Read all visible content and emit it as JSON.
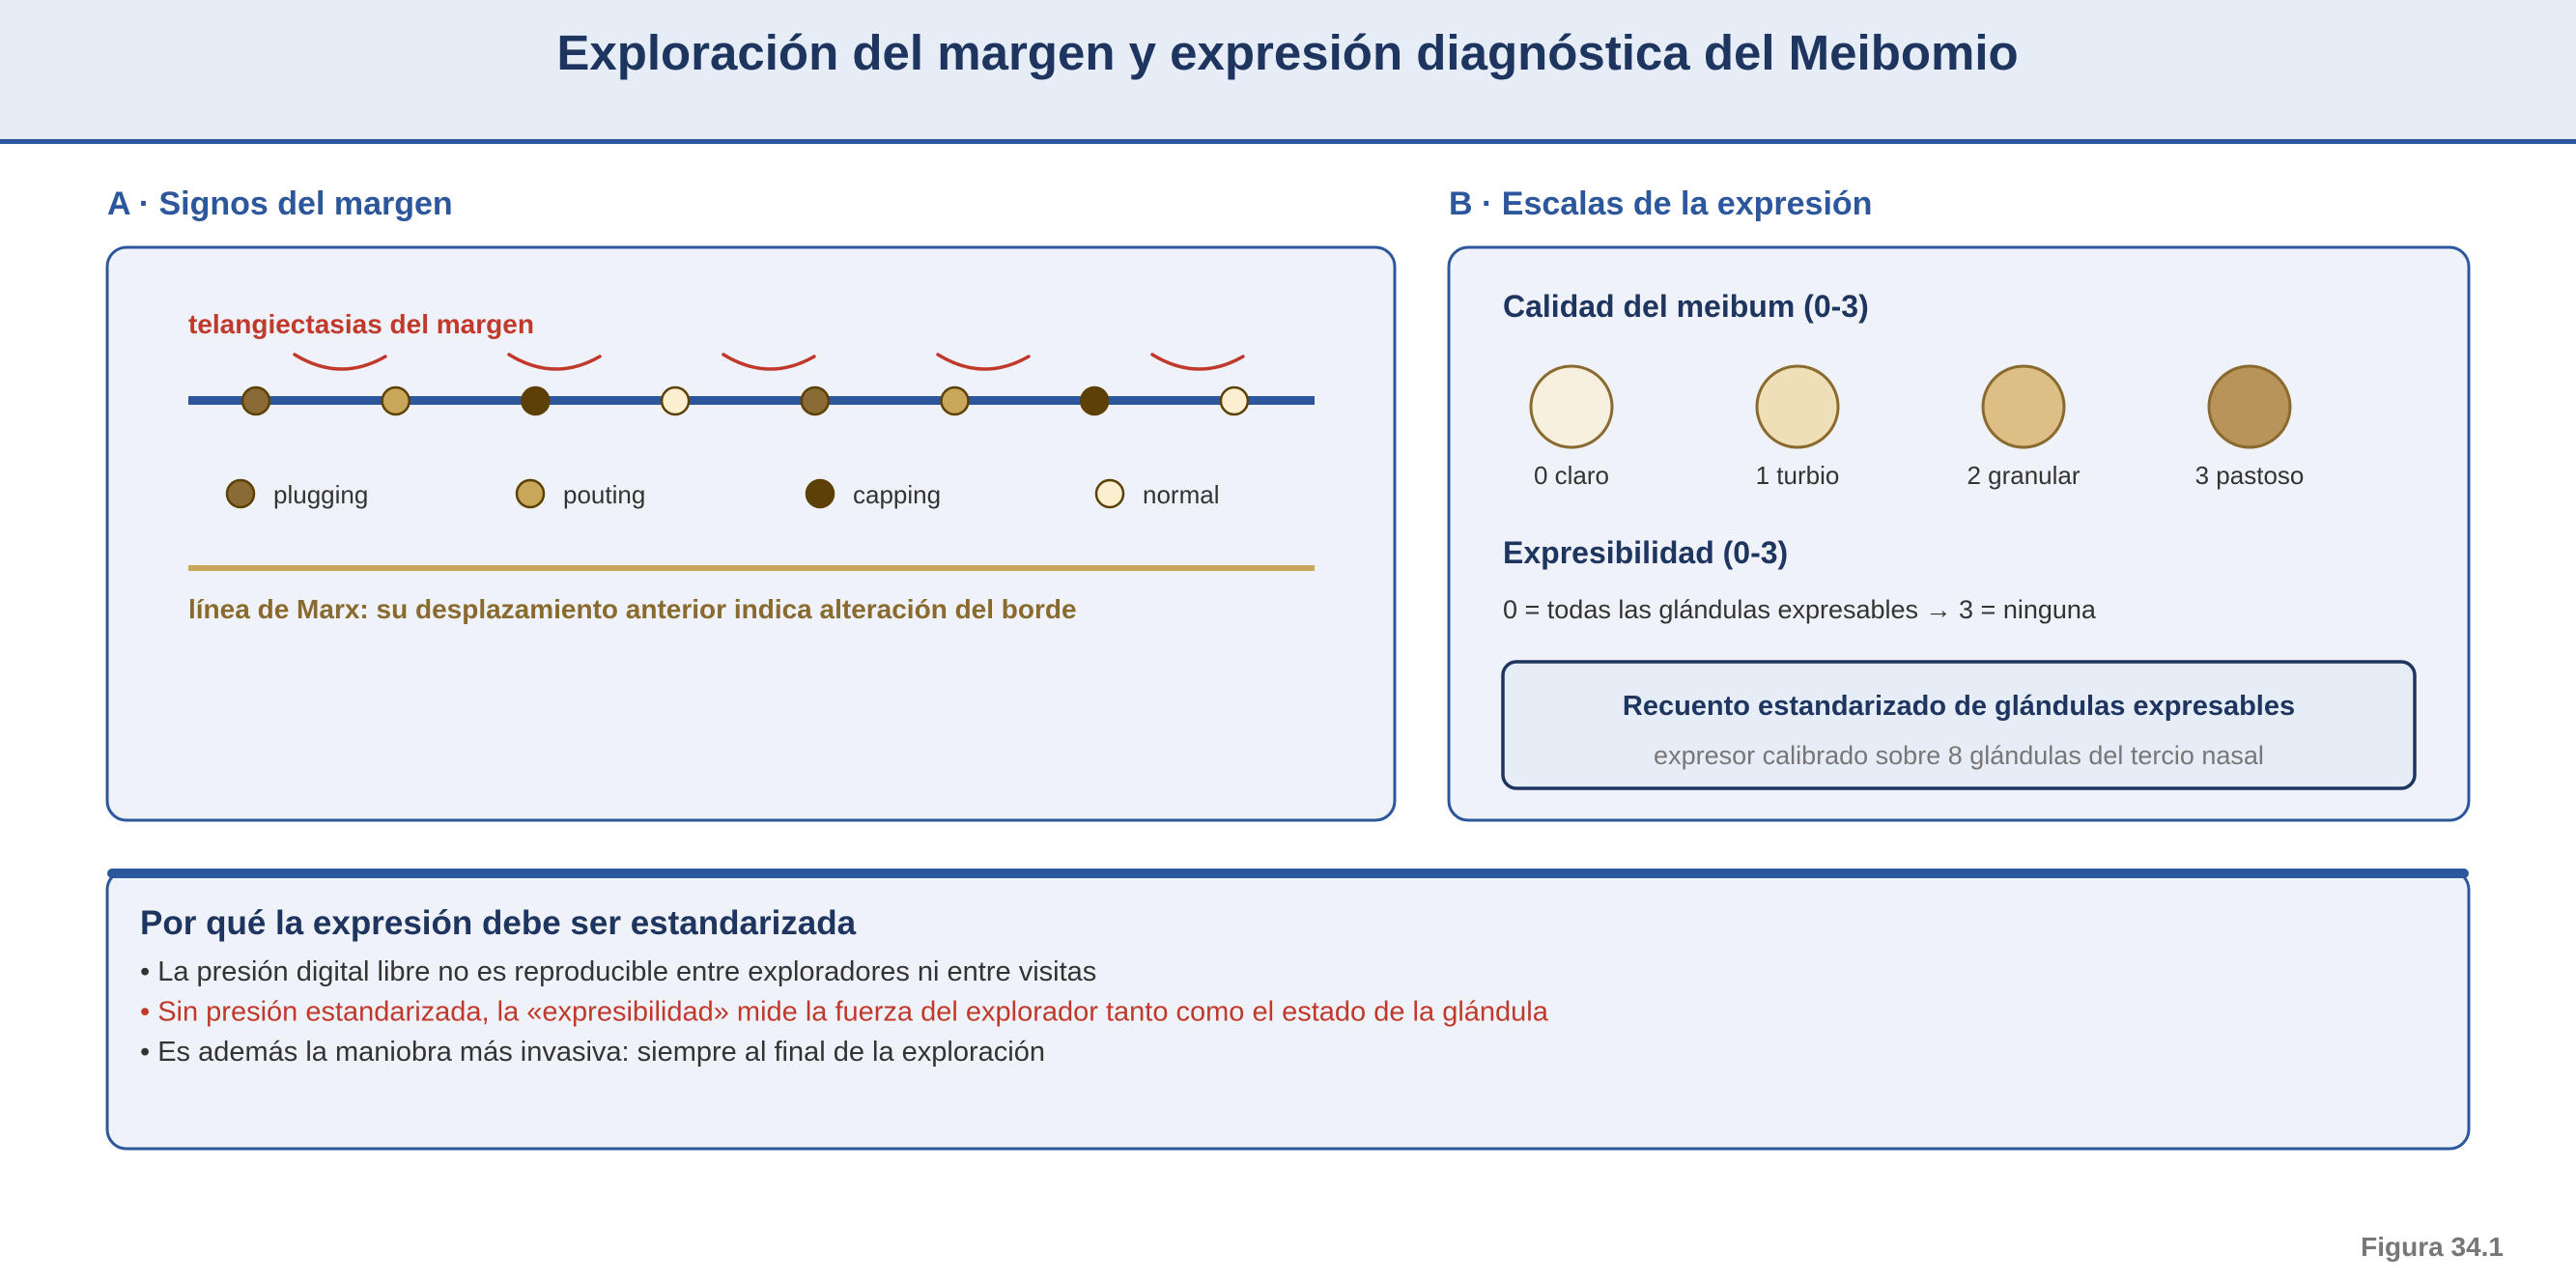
{
  "title": "Exploración del margen y expresión diagnóstica del Meibomio",
  "panel_a": {
    "heading": "A · Signos del margen",
    "telangiectasia_label": "telangiectasias del margen",
    "gland_sequence": [
      "plugging",
      "pouting",
      "capping",
      "normal",
      "plugging",
      "pouting",
      "capping",
      "normal"
    ],
    "legend": [
      {
        "label": "plugging",
        "color": "#8b6b35"
      },
      {
        "label": "pouting",
        "color": "#c9a75a"
      },
      {
        "label": "capping",
        "color": "#5c4006"
      },
      {
        "label": "normal",
        "color": "#fbefcf"
      }
    ],
    "marx_note": "línea de Marx: su desplazamiento anterior indica alteración del borde"
  },
  "panel_b": {
    "heading": "B · Escalas de la expresión",
    "quality_title": "Calidad del meibum (0-3)",
    "quality_grades": [
      {
        "label": "0 claro",
        "color": "#f8f0de"
      },
      {
        "label": "1 turbio",
        "color": "#efdfb7"
      },
      {
        "label": "2 granular",
        "color": "#ddbf85"
      },
      {
        "label": "3 pastoso",
        "color": "#b8935a"
      }
    ],
    "expressibility_title": "Expresibilidad (0-3)",
    "expressibility_scale": "0 = todas las glándulas expresables → 3 = ninguna",
    "standard_box": {
      "title": "Recuento estandarizado de glándulas expresables",
      "subtitle": "expresor calibrado sobre 8 glándulas del tercio nasal"
    }
  },
  "bottom": {
    "title": "Por qué la expresión debe ser estandarizada",
    "bullets": [
      {
        "text": "• La presión digital libre no es reproducible entre exploradores ni entre visitas",
        "highlight": false
      },
      {
        "text": "• Sin presión estandarizada, la «expresibilidad» mide la fuerza del explorador tanto como el estado de la glándula",
        "highlight": true
      },
      {
        "text": "• Es además la maniobra más invasiva: siempre al final de la exploración",
        "highlight": false
      }
    ]
  },
  "figure_label": "Figura 34.1",
  "colors": {
    "navy": "#1e3560",
    "blue": "#2d579c",
    "red": "#c0392b",
    "gold": "#8a6a2f",
    "panel_bg": "#eff3f9",
    "header_bg": "#e6edf7"
  }
}
